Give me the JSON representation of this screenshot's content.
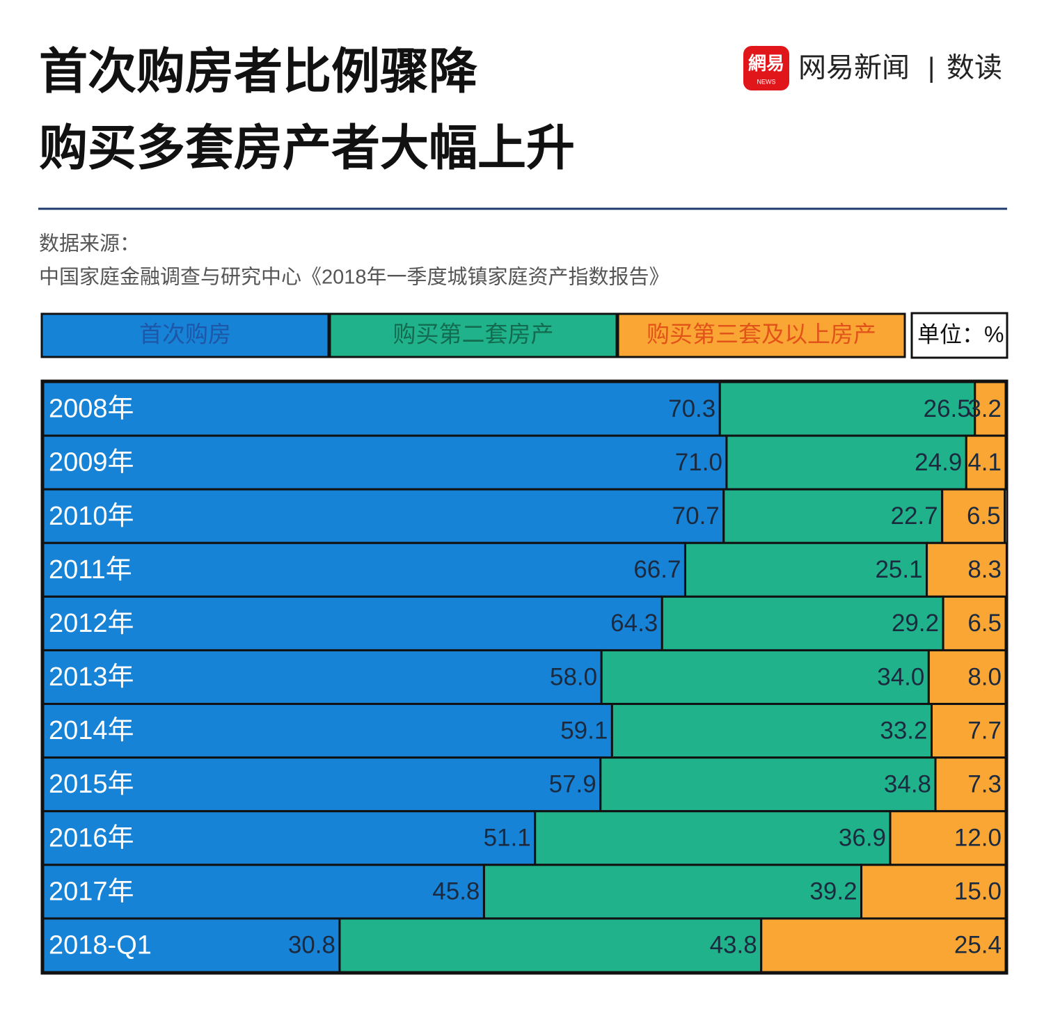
{
  "header": {
    "logo_top": "網易",
    "logo_bottom": "NEWS",
    "brand": "网易新闻",
    "separator": "|",
    "column": "数读"
  },
  "chart_data": {
    "type": "bar",
    "orientation": "horizontal",
    "stacked": true,
    "title": "首次购房者比例骤降",
    "subtitle": "购买多套房产者大幅上升",
    "source_label": "数据来源：",
    "source": "中国家庭金融调查与研究中心《2018年一季度城镇家庭资产指数报告》",
    "unit_label": "单位：%",
    "xlim": [
      0,
      100
    ],
    "categories": [
      "2008年",
      "2009年",
      "2010年",
      "2011年",
      "2012年",
      "2013年",
      "2014年",
      "2015年",
      "2016年",
      "2017年",
      "2018-Q1"
    ],
    "series": [
      {
        "name": "首次购房",
        "color": "#1783d6",
        "values": [
          70.3,
          71.0,
          70.7,
          66.7,
          64.3,
          58.0,
          59.1,
          57.9,
          51.1,
          45.8,
          30.8
        ],
        "value_labels": [
          "70.3",
          "71.0",
          "70.7",
          "66.7",
          "64.3",
          "58.0",
          "59.1",
          "57.9",
          "51.1",
          "45.8",
          "30.8"
        ]
      },
      {
        "name": "购买第二套房产",
        "color": "#20b38b",
        "values": [
          26.5,
          24.9,
          22.7,
          25.1,
          29.2,
          34.0,
          33.2,
          34.8,
          36.9,
          39.2,
          43.8
        ],
        "value_labels": [
          "26.5",
          "24.9",
          "22.7",
          "25.1",
          "29.2",
          "34.0",
          "33.2",
          "34.8",
          "36.9",
          "39.2",
          "43.8"
        ]
      },
      {
        "name": "购买第三套及以上房产",
        "color": "#f9a635",
        "values": [
          3.2,
          4.1,
          6.5,
          8.3,
          6.5,
          8.0,
          7.7,
          7.3,
          12.0,
          15.0,
          25.4
        ],
        "value_labels": [
          "3.2",
          "4.1",
          "6.5",
          "8.3",
          "6.5",
          "8.0",
          "7.7",
          "7.3",
          "12.0",
          "15.0",
          "25.4"
        ]
      }
    ]
  }
}
